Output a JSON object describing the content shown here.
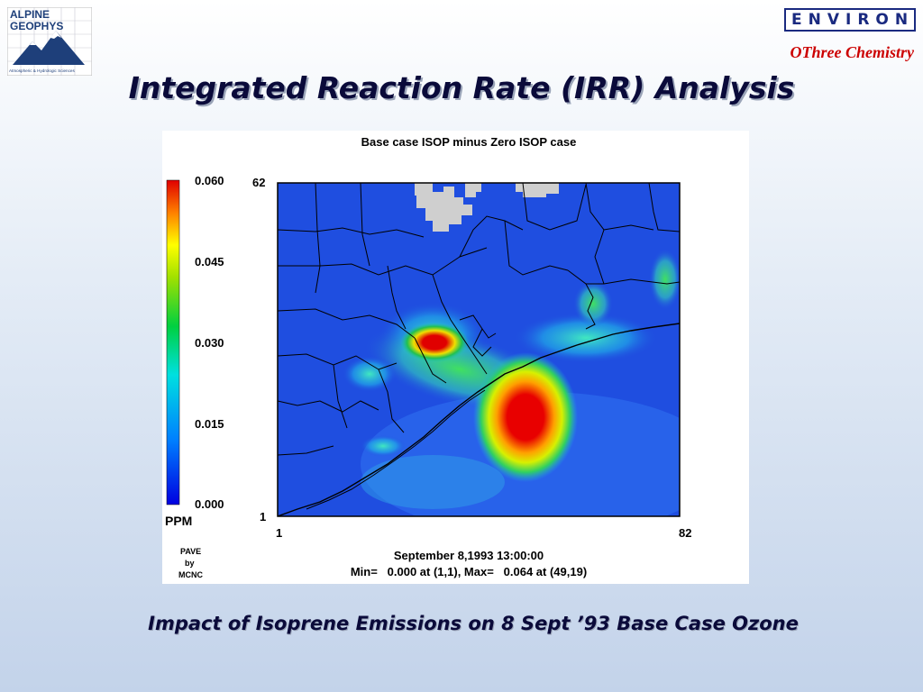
{
  "logo_left": {
    "line1": "ALPINE",
    "line2": "GEOPHYS",
    "tagline": "Atmospheric & Hydrologic Sciences"
  },
  "logo_right": {
    "text": "ENVIRON"
  },
  "subbrand": "OThree Chemistry",
  "title": "Integrated Reaction Rate (IRR) Analysis",
  "map": {
    "title": "Base case ISOP minus Zero ISOP case",
    "legend": {
      "unit": "PPM",
      "ticks": [
        "0.060",
        "0.045",
        "0.030",
        "0.015",
        "0.000"
      ]
    },
    "grid_x_labels": [
      "1",
      "82"
    ],
    "grid_y_labels": [
      "62",
      "1"
    ],
    "credit": [
      "PAVE",
      "by",
      "MCNC"
    ],
    "footer_date": "September 8,1993 13:00:00",
    "footer_stats": "Min=   0.000 at (1,1), Max=   0.064 at (49,19)",
    "colors": {
      "background_field": "#1f4ee0",
      "no_data": "#cfcfcf",
      "hot": "#e60000"
    }
  },
  "caption": "Impact of Isoprene Emissions on 8 Sept ’93 Base Case Ozone"
}
